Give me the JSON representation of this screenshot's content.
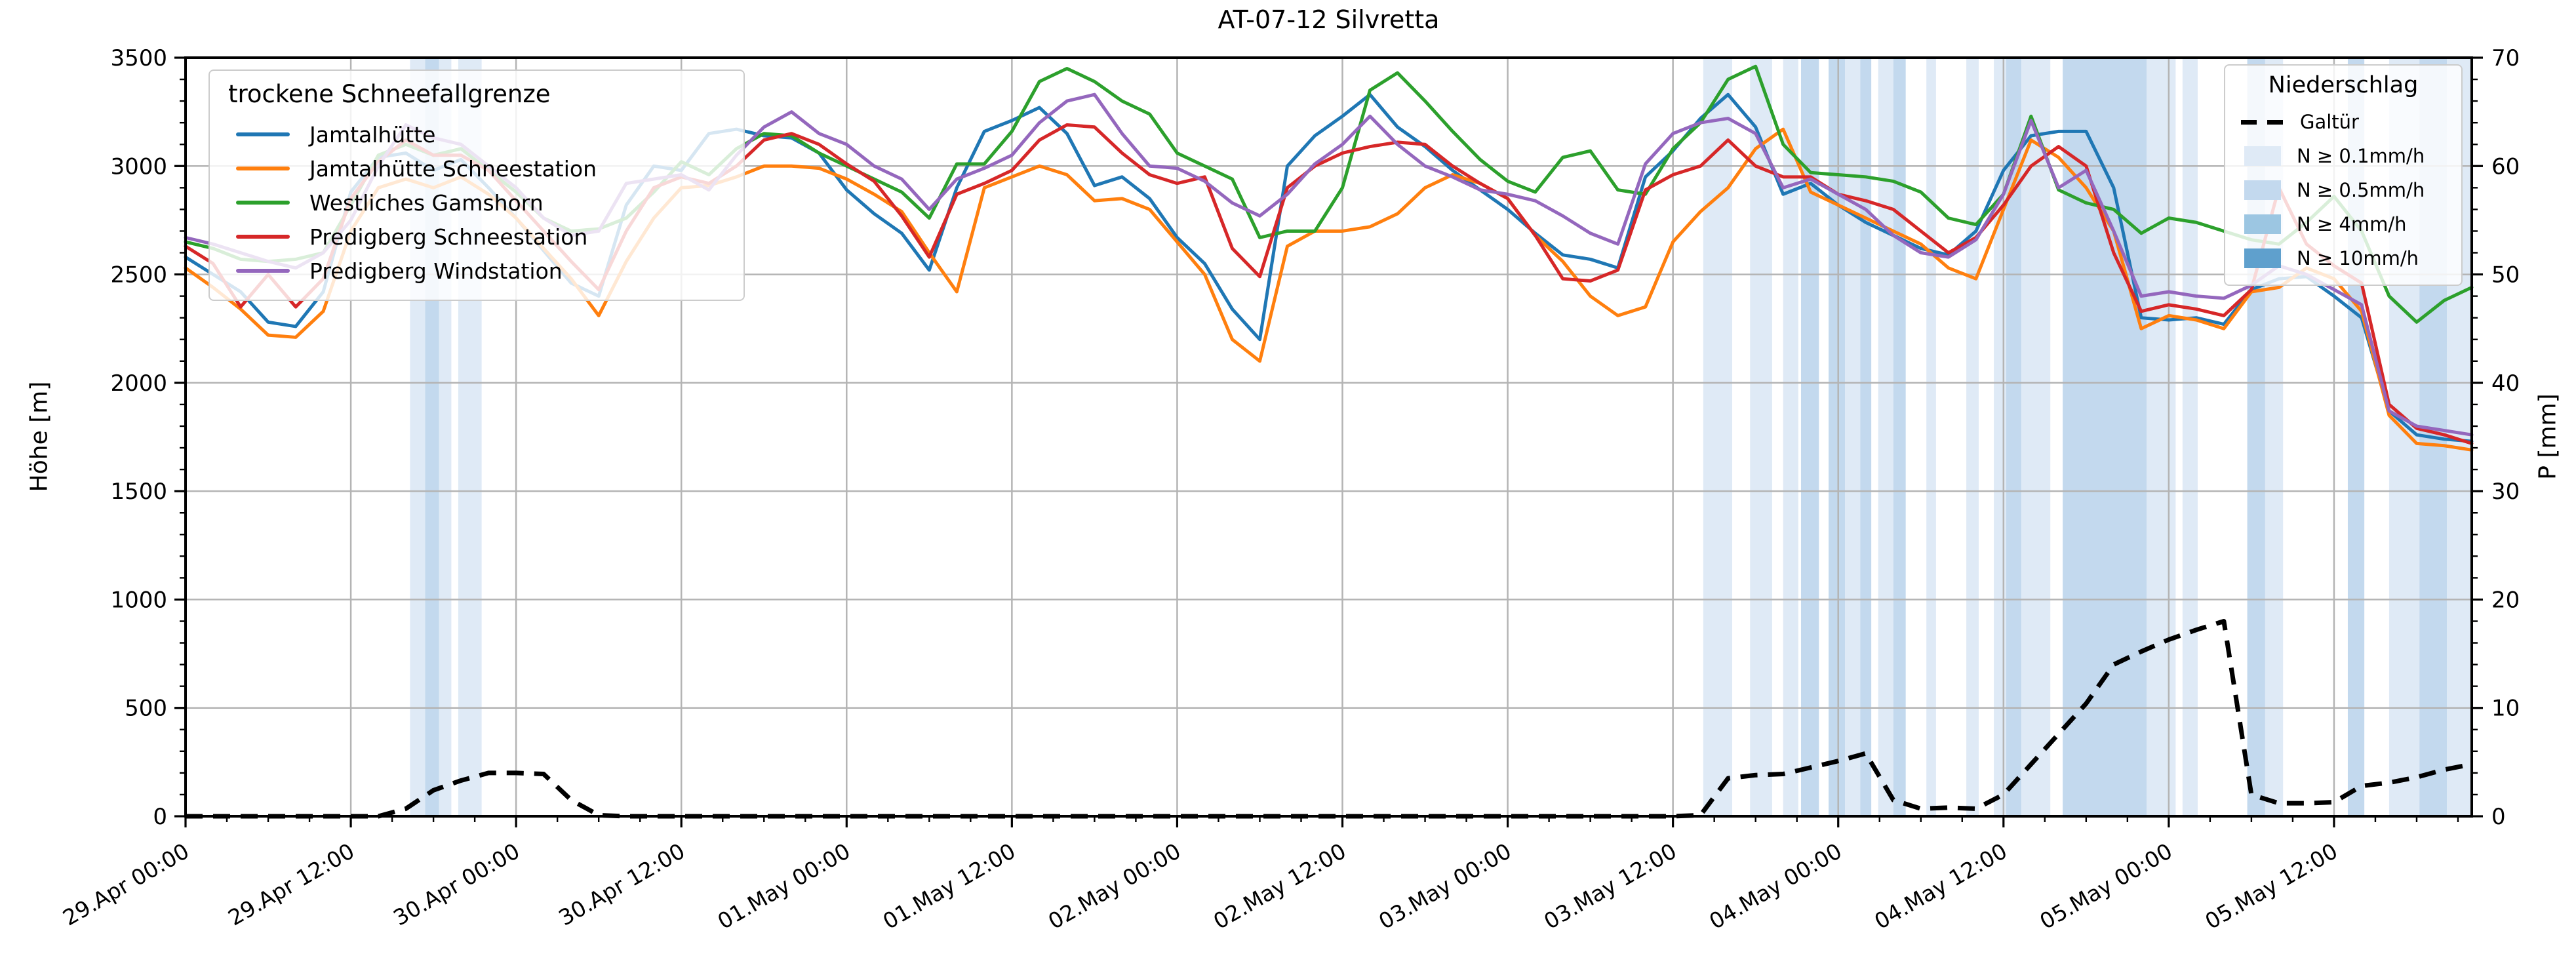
{
  "title": "AT-07-12 Silvretta",
  "chart_data": {
    "type": "line",
    "title": "AT-07-12 Silvretta",
    "grid": true,
    "x_axis": {
      "unit": "hours since 29.Apr 00:00",
      "range_h": [
        0,
        166
      ],
      "major_tick_every_h": 12,
      "minor_tick_every_h": 3,
      "tick_labels": [
        "29.Apr 00:00",
        "29.Apr 12:00",
        "30.Apr 00:00",
        "30.Apr 12:00",
        "01.May 00:00",
        "01.May 12:00",
        "02.May 00:00",
        "02.May 12:00",
        "03.May 00:00",
        "03.May 12:00",
        "04.May 00:00",
        "04.May 12:00",
        "05.May 00:00",
        "05.May 12:00"
      ]
    },
    "y_left": {
      "label": "Höhe [m]",
      "range": [
        0,
        3500
      ],
      "ticks": [
        0,
        500,
        1000,
        1500,
        2000,
        2500,
        3000,
        3500
      ],
      "minor_step": 100
    },
    "y_right": {
      "label": "P [mm]",
      "range": [
        0,
        70
      ],
      "ticks": [
        0,
        10,
        20,
        30,
        40,
        50,
        60,
        70
      ],
      "minor_step": 2
    },
    "sample_step_h": 2,
    "series": [
      {
        "name": "Jamtalhütte",
        "color": "#1f77b4",
        "axis": "left",
        "values": [
          2580,
          2500,
          2420,
          2280,
          2260,
          2420,
          2880,
          3040,
          3060,
          2980,
          3030,
          2900,
          2760,
          2610,
          2460,
          2400,
          2820,
          3000,
          2980,
          3150,
          3170,
          3140,
          3130,
          3060,
          2890,
          2780,
          2690,
          2520,
          2900,
          3160,
          3210,
          3270,
          3150,
          2910,
          2950,
          2850,
          2670,
          2550,
          2340,
          2200,
          3000,
          3140,
          3230,
          3330,
          3180,
          3090,
          2980,
          2890,
          2800,
          2690,
          2590,
          2570,
          2530,
          2950,
          3070,
          3220,
          3330,
          3180,
          2870,
          2920,
          2820,
          2740,
          2680,
          2620,
          2590,
          2700,
          2980,
          3140,
          3160,
          3160,
          2900,
          2300,
          2290,
          2300,
          2270,
          2430,
          2480,
          2490,
          2400,
          2300,
          1870,
          1760,
          1740,
          1730
        ]
      },
      {
        "name": "Jamtalhütte Schneestation",
        "color": "#ff7f0e",
        "axis": "left",
        "values": [
          2530,
          2440,
          2340,
          2220,
          2210,
          2330,
          2700,
          2900,
          2940,
          2900,
          2950,
          2870,
          2760,
          2620,
          2480,
          2310,
          2560,
          2760,
          2900,
          2910,
          2950,
          3000,
          3000,
          2990,
          2940,
          2870,
          2790,
          2600,
          2420,
          2900,
          2950,
          3000,
          2960,
          2840,
          2850,
          2800,
          2650,
          2500,
          2200,
          2100,
          2630,
          2700,
          2700,
          2720,
          2780,
          2900,
          2960,
          2920,
          2850,
          2680,
          2560,
          2400,
          2310,
          2350,
          2650,
          2790,
          2900,
          3080,
          3170,
          2880,
          2820,
          2760,
          2700,
          2640,
          2530,
          2480,
          2800,
          3120,
          3040,
          2900,
          2700,
          2250,
          2310,
          2290,
          2250,
          2420,
          2440,
          2530,
          2480,
          2330,
          1850,
          1720,
          1710,
          1690
        ]
      },
      {
        "name": "Westliches Gamshorn",
        "color": "#2ca02c",
        "axis": "left",
        "values": [
          2650,
          2620,
          2570,
          2560,
          2570,
          2600,
          2820,
          3050,
          3100,
          3050,
          3080,
          2980,
          2880,
          2760,
          2700,
          2710,
          2760,
          2880,
          3020,
          2960,
          3080,
          3150,
          3140,
          3060,
          3000,
          2940,
          2880,
          2760,
          3010,
          3010,
          3160,
          3390,
          3450,
          3390,
          3300,
          3240,
          3060,
          3000,
          2940,
          2670,
          2700,
          2700,
          2900,
          3350,
          3430,
          3300,
          3160,
          3030,
          2930,
          2880,
          3040,
          3070,
          2890,
          2870,
          3080,
          3200,
          3400,
          3460,
          3100,
          2970,
          2960,
          2950,
          2930,
          2880,
          2760,
          2730,
          2870,
          3230,
          2890,
          2830,
          2800,
          2690,
          2760,
          2740,
          2700,
          2660,
          2640,
          2740,
          2860,
          2700,
          2400,
          2280,
          2380,
          2440
        ]
      },
      {
        "name": "Predigberg Schneestation",
        "color": "#d62728",
        "axis": "left",
        "values": [
          2630,
          2550,
          2350,
          2500,
          2350,
          2480,
          2850,
          3020,
          3120,
          3050,
          3050,
          2980,
          2840,
          2700,
          2560,
          2430,
          2700,
          2900,
          2950,
          2920,
          3000,
          3120,
          3150,
          3100,
          3010,
          2930,
          2770,
          2580,
          2870,
          2920,
          2980,
          3120,
          3190,
          3180,
          3060,
          2960,
          2920,
          2950,
          2620,
          2490,
          2900,
          3000,
          3060,
          3090,
          3110,
          3100,
          3000,
          2920,
          2850,
          2680,
          2480,
          2470,
          2520,
          2890,
          2960,
          3000,
          3120,
          3000,
          2950,
          2950,
          2870,
          2840,
          2800,
          2700,
          2600,
          2670,
          2820,
          3000,
          3090,
          3000,
          2600,
          2330,
          2360,
          2340,
          2310,
          2430,
          2900,
          2640,
          2540,
          2460,
          1900,
          1790,
          1760,
          1720
        ]
      },
      {
        "name": "Predigberg Windstation",
        "color": "#9467bd",
        "axis": "left",
        "values": [
          2670,
          2640,
          2600,
          2560,
          2530,
          2600,
          2750,
          3000,
          3190,
          3130,
          3100,
          3000,
          2900,
          2760,
          2680,
          2700,
          2920,
          2940,
          2960,
          2890,
          3050,
          3180,
          3250,
          3150,
          3100,
          3000,
          2940,
          2800,
          2940,
          2990,
          3050,
          3200,
          3300,
          3330,
          3150,
          3000,
          2990,
          2930,
          2830,
          2770,
          2870,
          3010,
          3100,
          3230,
          3100,
          3000,
          2950,
          2890,
          2870,
          2840,
          2770,
          2690,
          2640,
          3010,
          3150,
          3200,
          3220,
          3150,
          2900,
          2940,
          2870,
          2800,
          2680,
          2600,
          2580,
          2660,
          2870,
          3210,
          2900,
          2980,
          2700,
          2400,
          2420,
          2400,
          2390,
          2450,
          2540,
          2500,
          2430,
          2360,
          1870,
          1800,
          1780,
          1760
        ]
      }
    ],
    "precip_line": {
      "name": "Galtür",
      "color": "#000000",
      "style": "dashed",
      "axis": "right",
      "values": [
        0,
        0,
        0,
        0,
        0,
        0,
        0,
        0,
        0.7,
        2.4,
        3.3,
        4.0,
        4.0,
        3.9,
        1.5,
        0.1,
        0,
        0,
        0,
        0,
        0,
        0,
        0,
        0,
        0,
        0,
        0,
        0,
        0,
        0,
        0,
        0,
        0,
        0,
        0,
        0,
        0,
        0,
        0,
        0,
        0,
        0,
        0,
        0,
        0,
        0,
        0,
        0,
        0,
        0,
        0,
        0,
        0,
        0,
        0,
        0.1,
        3.5,
        3.8,
        3.9,
        4.5,
        5.1,
        5.8,
        1.5,
        0.7,
        0.8,
        0.7,
        2.0,
        4.8,
        7.6,
        10.4,
        14.0,
        15.2,
        16.3,
        17.2,
        18.0,
        2.0,
        1.2,
        1.2,
        1.3,
        2.8,
        3.1,
        3.6,
        4.3,
        4.8
      ]
    },
    "precip_band_colors": {
      "0.1": "#dfeaf6",
      "0.5": "#c3d9ee",
      "4": "#9cc6e2",
      "10": "#5fa0cd"
    },
    "precip_bands": [
      {
        "from_h": 16.3,
        "to_h": 17.4,
        "intensity": "0.1"
      },
      {
        "from_h": 17.4,
        "to_h": 18.4,
        "intensity": "0.5"
      },
      {
        "from_h": 18.4,
        "to_h": 19.3,
        "intensity": "0.1"
      },
      {
        "from_h": 19.8,
        "to_h": 21.5,
        "intensity": "0.1"
      },
      {
        "from_h": 110.2,
        "to_h": 112.3,
        "intensity": "0.1"
      },
      {
        "from_h": 113.6,
        "to_h": 115.2,
        "intensity": "0.1"
      },
      {
        "from_h": 116.0,
        "to_h": 117.1,
        "intensity": "0.1"
      },
      {
        "from_h": 117.3,
        "to_h": 118.6,
        "intensity": "0.5"
      },
      {
        "from_h": 119.3,
        "to_h": 120.5,
        "intensity": "0.5"
      },
      {
        "from_h": 120.5,
        "to_h": 121.6,
        "intensity": "0.1"
      },
      {
        "from_h": 121.6,
        "to_h": 122.4,
        "intensity": "0.5"
      },
      {
        "from_h": 122.9,
        "to_h": 124.0,
        "intensity": "0.1"
      },
      {
        "from_h": 124.0,
        "to_h": 124.9,
        "intensity": "0.5"
      },
      {
        "from_h": 126.4,
        "to_h": 127.1,
        "intensity": "0.1"
      },
      {
        "from_h": 129.3,
        "to_h": 130.2,
        "intensity": "0.1"
      },
      {
        "from_h": 131.3,
        "to_h": 132.2,
        "intensity": "0.1"
      },
      {
        "from_h": 132.2,
        "to_h": 133.3,
        "intensity": "0.5"
      },
      {
        "from_h": 133.3,
        "to_h": 135.4,
        "intensity": "0.1"
      },
      {
        "from_h": 136.3,
        "to_h": 142.4,
        "intensity": "0.5"
      },
      {
        "from_h": 142.4,
        "to_h": 144.5,
        "intensity": "0.1"
      },
      {
        "from_h": 145.0,
        "to_h": 146.1,
        "intensity": "0.1"
      },
      {
        "from_h": 149.7,
        "to_h": 151.0,
        "intensity": "0.5"
      },
      {
        "from_h": 151.0,
        "to_h": 152.3,
        "intensity": "0.1"
      },
      {
        "from_h": 157.0,
        "to_h": 158.2,
        "intensity": "0.5"
      },
      {
        "from_h": 160.0,
        "to_h": 162.2,
        "intensity": "0.1"
      },
      {
        "from_h": 162.2,
        "to_h": 164.2,
        "intensity": "0.5"
      },
      {
        "from_h": 164.2,
        "to_h": 166.0,
        "intensity": "0.1"
      }
    ],
    "legend_left": {
      "title": "trockene Schneefallgrenze",
      "items": [
        {
          "label": "Jamtalhütte",
          "color": "#1f77b4"
        },
        {
          "label": "Jamtalhütte Schneestation",
          "color": "#ff7f0e"
        },
        {
          "label": "Westliches Gamshorn",
          "color": "#2ca02c"
        },
        {
          "label": "Predigberg Schneestation",
          "color": "#d62728"
        },
        {
          "label": "Predigberg Windstation",
          "color": "#9467bd"
        }
      ]
    },
    "legend_right": {
      "title": "Niederschlag",
      "items": [
        {
          "label": "Galtür",
          "swatch": "dashed-line"
        },
        {
          "label": "N ≥ 0.1mm/h",
          "swatch": "patch",
          "color": "#dfeaf6"
        },
        {
          "label": "N ≥ 0.5mm/h",
          "swatch": "patch",
          "color": "#c3d9ee"
        },
        {
          "label": "N ≥ 4mm/h",
          "swatch": "patch",
          "color": "#9cc6e2"
        },
        {
          "label": "N ≥ 10mm/h",
          "swatch": "patch",
          "color": "#5fa0cd"
        }
      ]
    },
    "colors": {
      "grid": "#b4b4b4",
      "spine": "#000000",
      "background": "#ffffff"
    }
  }
}
